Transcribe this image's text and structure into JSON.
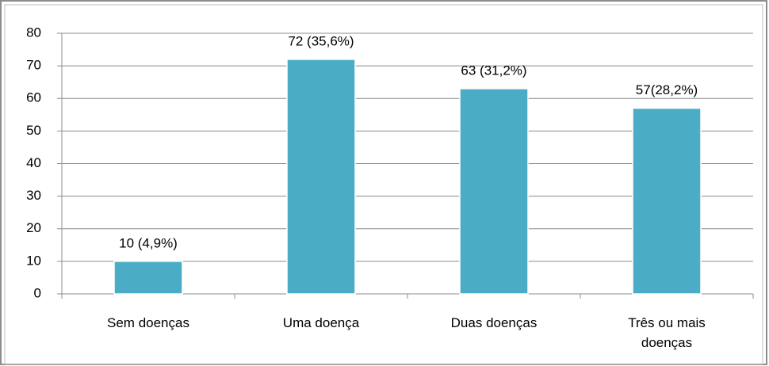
{
  "chart_data": {
    "type": "bar",
    "categories": [
      "Sem doenças",
      "Uma doença",
      "Duas doenças",
      "Três ou mais doenças"
    ],
    "values": [
      10,
      72,
      63,
      57
    ],
    "value_labels": [
      "10 (4,9%)",
      "72 (35,6%)",
      "63 (31,2%)",
      "57(28,2%)"
    ],
    "color": "#4bacc6",
    "ylim": [
      0,
      80
    ],
    "yticks": [
      0,
      10,
      20,
      30,
      40,
      50,
      60,
      70,
      80
    ],
    "grid": true
  }
}
